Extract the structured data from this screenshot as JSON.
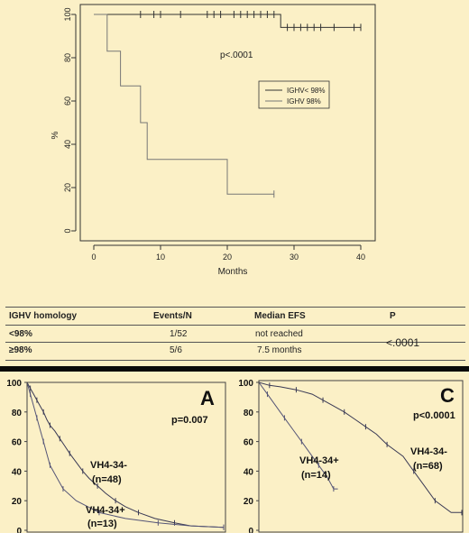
{
  "chart_data": [
    {
      "type": "line",
      "title": "",
      "xlabel": "Months",
      "ylabel": "%",
      "xlim": [
        0,
        40
      ],
      "ylim": [
        0,
        100
      ],
      "xticks": [
        "0",
        "10",
        "20",
        "30",
        "40"
      ],
      "yticks": [
        "0",
        "20",
        "40",
        "60",
        "80",
        "100"
      ],
      "annotation": "p<.0001",
      "legend_position": "center-right",
      "series": [
        {
          "name": "IGHV< 98%",
          "color": "#333333",
          "steps": [
            [
              0,
              100
            ],
            [
              28,
              100
            ],
            [
              28,
              94
            ],
            [
              40,
              94
            ]
          ],
          "censor_x": [
            7,
            9,
            10,
            13,
            17,
            18,
            19,
            21,
            22,
            23,
            24,
            25,
            26,
            27,
            29,
            30,
            31,
            32,
            33,
            34,
            36,
            39,
            40
          ]
        },
        {
          "name": "IGHV  98%",
          "color": "#777777",
          "steps": [
            [
              0,
              100
            ],
            [
              2,
              100
            ],
            [
              2,
              83
            ],
            [
              4,
              83
            ],
            [
              4,
              67
            ],
            [
              7,
              67
            ],
            [
              7,
              50
            ],
            [
              8,
              50
            ],
            [
              8,
              33
            ],
            [
              20,
              33
            ],
            [
              20,
              17
            ],
            [
              27,
              17
            ]
          ],
          "censor_x": [
            27
          ]
        }
      ]
    },
    {
      "type": "table",
      "columns": [
        "IGHV homology",
        "Events/N",
        "Median EFS",
        "P"
      ],
      "rows": [
        [
          "<98%",
          "1/52",
          "not reached"
        ],
        [
          "≥98%",
          "5/6",
          "7.5 months"
        ]
      ],
      "p_value": "<.0001"
    },
    {
      "type": "line",
      "panel_label": "A",
      "annotation": "p=0.007",
      "ylim": [
        0,
        100
      ],
      "yticks": [
        "0",
        "20",
        "40",
        "60",
        "80",
        "100"
      ],
      "series": [
        {
          "name": "VH4-34-",
          "n_label": "(n=48)",
          "steps": [
            [
              0,
              100
            ],
            [
              2,
              96
            ],
            [
              4,
              92
            ],
            [
              6,
              88
            ],
            [
              8,
              84
            ],
            [
              10,
              80
            ],
            [
              12,
              75
            ],
            [
              14,
              71
            ],
            [
              17,
              67
            ],
            [
              20,
              62
            ],
            [
              23,
              57
            ],
            [
              26,
              52
            ],
            [
              30,
              46
            ],
            [
              34,
              40
            ],
            [
              38,
              35
            ],
            [
              43,
              30
            ],
            [
              48,
              25
            ],
            [
              54,
              20
            ],
            [
              60,
              16
            ],
            [
              68,
              12
            ],
            [
              78,
              8
            ],
            [
              90,
              5
            ],
            [
              100,
              3
            ],
            [
              120,
              2
            ]
          ]
        },
        {
          "name": "VH4-34+",
          "n_label": "(n=13)",
          "steps": [
            [
              0,
              100
            ],
            [
              2,
              92
            ],
            [
              4,
              84
            ],
            [
              6,
              76
            ],
            [
              8,
              68
            ],
            [
              10,
              60
            ],
            [
              12,
              52
            ],
            [
              14,
              44
            ],
            [
              18,
              36
            ],
            [
              22,
              28
            ],
            [
              30,
              20
            ],
            [
              44,
              12
            ],
            [
              60,
              8
            ],
            [
              80,
              5
            ],
            [
              100,
              3
            ],
            [
              120,
              2
            ]
          ]
        }
      ]
    },
    {
      "type": "line",
      "panel_label": "C",
      "annotation": "p<0.0001",
      "ylim": [
        0,
        100
      ],
      "yticks": [
        "0",
        "20",
        "40",
        "60",
        "80",
        "100"
      ],
      "series": [
        {
          "name": "VH4-34-",
          "n_label": "(n=68)",
          "steps": [
            [
              0,
              100
            ],
            [
              10,
              98
            ],
            [
              20,
              97
            ],
            [
              35,
              95
            ],
            [
              50,
              92
            ],
            [
              60,
              88
            ],
            [
              70,
              84
            ],
            [
              80,
              80
            ],
            [
              90,
              75
            ],
            [
              100,
              70
            ],
            [
              110,
              65
            ],
            [
              120,
              58
            ],
            [
              135,
              50
            ],
            [
              145,
              40
            ],
            [
              155,
              30
            ],
            [
              165,
              20
            ],
            [
              180,
              12
            ],
            [
              190,
              12
            ]
          ]
        },
        {
          "name": "VH4-34+",
          "n_label": "(n=14)",
          "steps": [
            [
              0,
              100
            ],
            [
              8,
              92
            ],
            [
              16,
              84
            ],
            [
              24,
              76
            ],
            [
              32,
              68
            ],
            [
              40,
              60
            ],
            [
              48,
              52
            ],
            [
              56,
              44
            ],
            [
              64,
              36
            ],
            [
              70,
              28
            ],
            [
              74,
              28
            ]
          ]
        }
      ]
    }
  ]
}
